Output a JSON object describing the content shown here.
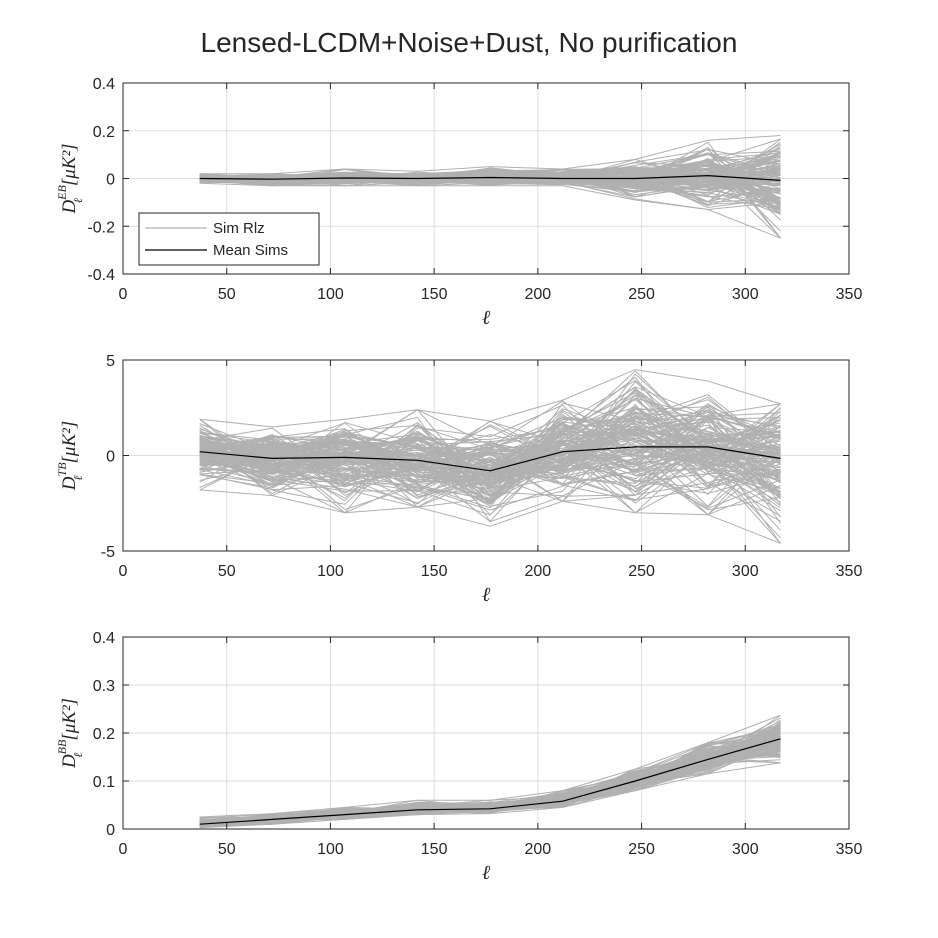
{
  "title": "Lensed-LCDM+Noise+Dust, No purification",
  "colors": {
    "sim": "#b0b0b0",
    "mean": "#000000",
    "axis": "#262626",
    "grid": "#dedede"
  },
  "legend": [
    {
      "label": "Sim Rlz",
      "color": "#b0b0b0"
    },
    {
      "label": "Mean Sims",
      "color": "#000000"
    }
  ],
  "chart_data": [
    {
      "type": "line",
      "title": "Lensed-LCDM+Noise+Dust, No purification",
      "xlabel": "ℓ",
      "ylabel": {
        "main": "D",
        "sup": "EB",
        "sub": "ℓ",
        "unit": "[μK²]"
      },
      "xlim": [
        0,
        350
      ],
      "ylim": [
        -0.4,
        0.4
      ],
      "xticks": [
        "0",
        "50",
        "100",
        "150",
        "200",
        "250",
        "300",
        "350"
      ],
      "yticks": [
        "-0.4",
        "-0.2",
        "0",
        "0.2",
        "0.4"
      ],
      "grid": true,
      "legend_position": "bottom-left",
      "x": [
        37,
        72,
        107,
        142,
        177,
        212,
        247,
        282,
        317
      ],
      "series": [
        {
          "name": "Mean Sims",
          "values": [
            0.0,
            -0.003,
            0.002,
            0.0,
            0.004,
            0.0,
            0.0,
            0.012,
            -0.008
          ]
        }
      ],
      "sim_band": {
        "lower": [
          -0.02,
          -0.03,
          -0.03,
          -0.03,
          -0.03,
          -0.03,
          -0.09,
          -0.13,
          -0.25
        ],
        "upper": [
          0.02,
          0.02,
          0.04,
          0.03,
          0.05,
          0.04,
          0.08,
          0.16,
          0.18
        ]
      }
    },
    {
      "type": "line",
      "xlabel": "ℓ",
      "ylabel": {
        "main": "D",
        "sup": "TB",
        "sub": "ℓ",
        "unit": "[μK²]"
      },
      "xlim": [
        0,
        350
      ],
      "ylim": [
        -5,
        5
      ],
      "xticks": [
        "0",
        "50",
        "100",
        "150",
        "200",
        "250",
        "300",
        "350"
      ],
      "yticks": [
        "-5",
        "0",
        "5"
      ],
      "grid": true,
      "x": [
        37,
        72,
        107,
        142,
        177,
        212,
        247,
        282,
        317
      ],
      "series": [
        {
          "name": "Mean Sims",
          "values": [
            0.2,
            -0.15,
            -0.1,
            -0.25,
            -0.8,
            0.2,
            0.45,
            0.45,
            -0.15
          ]
        }
      ],
      "sim_band": {
        "lower": [
          -1.8,
          -2.1,
          -3.0,
          -2.7,
          -3.7,
          -2.4,
          -3.0,
          -3.1,
          -4.6
        ],
        "upper": [
          1.9,
          1.5,
          1.9,
          2.4,
          1.8,
          2.9,
          4.5,
          3.9,
          2.7
        ]
      }
    },
    {
      "type": "line",
      "xlabel": "ℓ",
      "ylabel": {
        "main": "D",
        "sup": "BB",
        "sub": "ℓ",
        "unit": "[μK²]"
      },
      "xlim": [
        0,
        350
      ],
      "ylim": [
        0,
        0.4
      ],
      "xticks": [
        "0",
        "50",
        "100",
        "150",
        "200",
        "250",
        "300",
        "350"
      ],
      "yticks": [
        "0",
        "0.1",
        "0.2",
        "0.3",
        "0.4"
      ],
      "grid": true,
      "x": [
        37,
        72,
        107,
        142,
        177,
        212,
        247,
        282,
        317
      ],
      "series": [
        {
          "name": "Mean Sims",
          "values": [
            0.01,
            0.02,
            0.03,
            0.04,
            0.042,
            0.058,
            0.1,
            0.145,
            0.188
          ]
        }
      ],
      "sim_band": {
        "lower": [
          0.003,
          0.01,
          0.02,
          0.03,
          0.032,
          0.045,
          0.08,
          0.115,
          0.138
        ],
        "upper": [
          0.025,
          0.032,
          0.045,
          0.06,
          0.06,
          0.08,
          0.125,
          0.18,
          0.237
        ]
      }
    }
  ]
}
